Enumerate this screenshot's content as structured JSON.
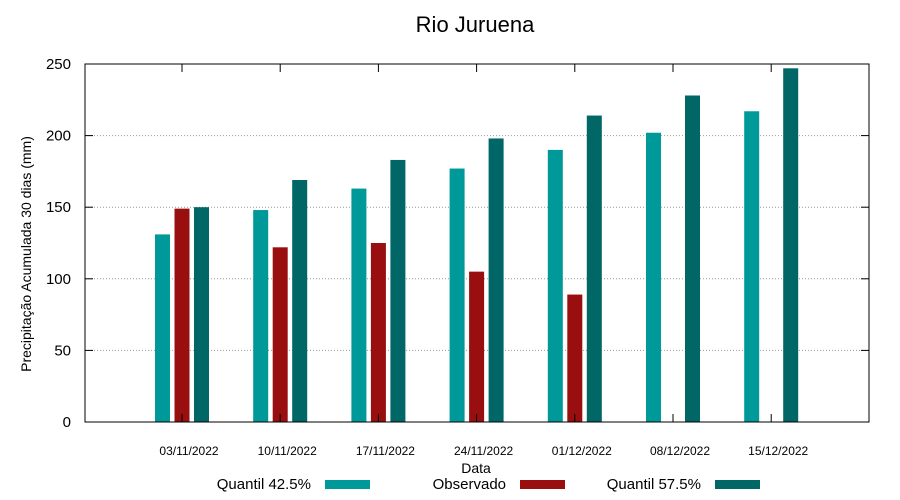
{
  "chart_data": {
    "type": "bar",
    "title": "Rio Juruena",
    "xlabel": "Data",
    "ylabel": "Precipitação Acumulada 30 dias (mm)",
    "ylim": [
      0,
      250
    ],
    "yticks": [
      0,
      50,
      100,
      150,
      200,
      250
    ],
    "grid": true,
    "legend_position": "bottom",
    "categories": [
      "03/11/2022",
      "10/11/2022",
      "17/11/2022",
      "24/11/2022",
      "01/12/2022",
      "08/12/2022",
      "15/12/2022"
    ],
    "series": [
      {
        "name": "Quantil 42.5%",
        "color": "#009999",
        "values": [
          131,
          148,
          163,
          177,
          190,
          202,
          217
        ]
      },
      {
        "name": "Observado",
        "color": "#990f0f",
        "values": [
          149,
          122,
          125,
          105,
          89,
          null,
          null
        ]
      },
      {
        "name": "Quantil 57.5%",
        "color": "#006666",
        "values": [
          150,
          169,
          183,
          198,
          214,
          228,
          247
        ]
      }
    ]
  }
}
